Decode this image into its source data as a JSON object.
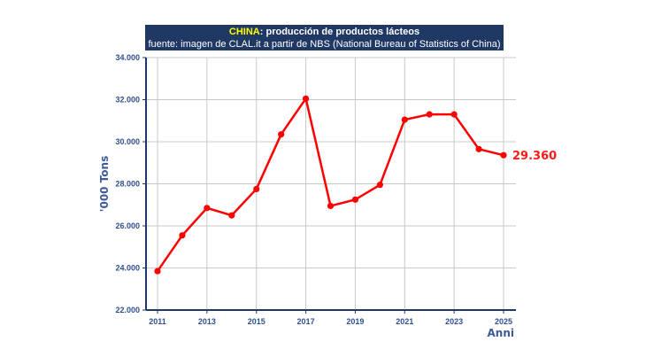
{
  "header": {
    "highlight": "CHINA",
    "title_rest": ": producción de productos lácteos",
    "source": "fuente: imagen de CLAL.it a partir de NBS (National Bureau of Statistics of China)"
  },
  "chart_data": {
    "type": "line",
    "ylabel": "'000 Tons",
    "xlabel": "Anni",
    "x": [
      2011,
      2012,
      2013,
      2014,
      2015,
      2016,
      2017,
      2018,
      2019,
      2020,
      2021,
      2022,
      2023,
      2024,
      2025
    ],
    "series": [
      {
        "values": [
          23850,
          25550,
          26850,
          26500,
          27750,
          30350,
          32050,
          26950,
          27250,
          27950,
          31050,
          31300,
          31300,
          29650,
          29360
        ]
      }
    ],
    "ylim": [
      22000,
      34000
    ],
    "yticks": [
      22000,
      24000,
      26000,
      28000,
      30000,
      32000,
      34000
    ],
    "ytick_labels": [
      "22.000",
      "24.000",
      "26.000",
      "28.000",
      "30.000",
      "32.000",
      "34.000"
    ],
    "xticks": [
      2011,
      2013,
      2015,
      2017,
      2019,
      2021,
      2023,
      2025
    ],
    "xlim": [
      2010.8,
      2025.5
    ],
    "end_label": "29.360",
    "grid": true,
    "colors": {
      "line": "#ff0000",
      "grid": "#c8c8c8",
      "axis": "#1f3864",
      "tick_text": "#2f4f8f"
    }
  }
}
